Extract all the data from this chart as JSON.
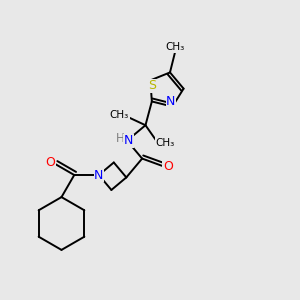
{
  "background_color": "#e8e8e8",
  "bond_color": "#000000",
  "nitrogen_color": "#0000ff",
  "oxygen_color": "#ff0000",
  "sulfur_color": "#b8b800",
  "h_color": "#7f7f7f",
  "figsize": [
    3.0,
    3.0
  ],
  "dpi": 100,
  "xlim": [
    0,
    10
  ],
  "ylim": [
    0,
    10
  ]
}
